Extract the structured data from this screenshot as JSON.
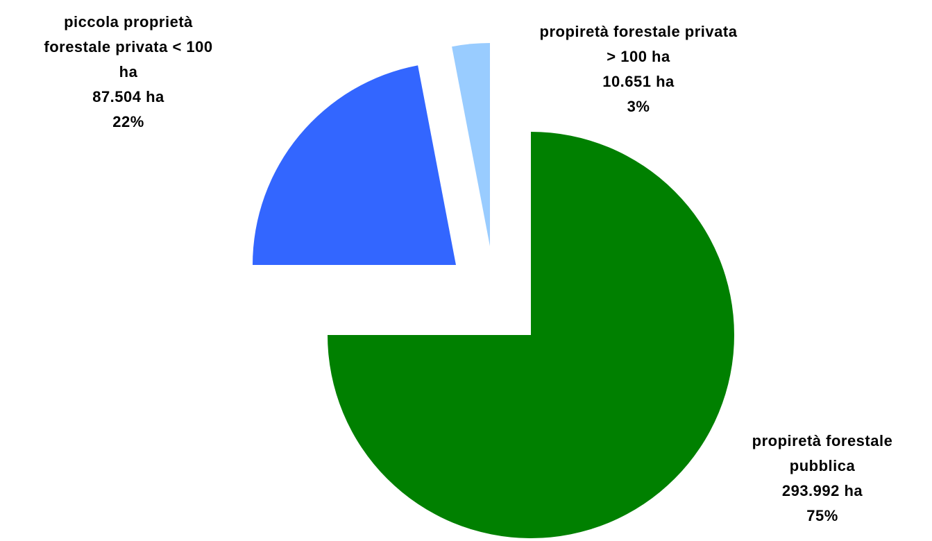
{
  "chart_data": {
    "type": "pie",
    "categories": [
      "propiretà forestale pubblica",
      "piccola proprietà forestale privata < 100 ha",
      "propiretà forestale privata > 100 ha"
    ],
    "values": [
      75,
      22,
      3
    ],
    "value_labels": [
      "75%",
      "22%",
      "3%"
    ],
    "areas": [
      293992,
      87504,
      10651
    ],
    "area_labels": [
      "293.992 ha",
      "87.504 ha",
      "10.651 ha"
    ],
    "colors": [
      "#008000",
      "#3366ff",
      "#99ccff"
    ]
  }
}
